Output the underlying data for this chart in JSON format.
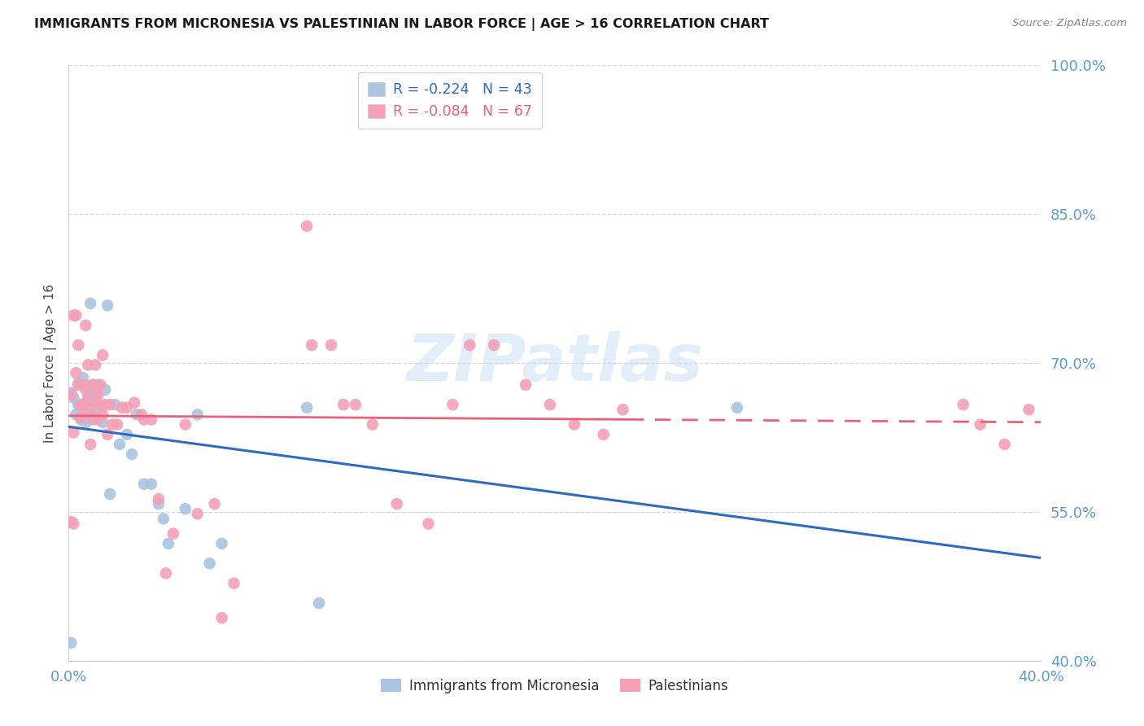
{
  "title": "IMMIGRANTS FROM MICRONESIA VS PALESTINIAN IN LABOR FORCE | AGE > 16 CORRELATION CHART",
  "source": "Source: ZipAtlas.com",
  "ylabel": "In Labor Force | Age > 16",
  "xlim": [
    0.0,
    0.4
  ],
  "ylim": [
    0.4,
    1.0
  ],
  "yticks": [
    0.4,
    0.55,
    0.7,
    0.85,
    1.0
  ],
  "ytick_labels": [
    "40.0%",
    "55.0%",
    "70.0%",
    "85.0%",
    "100.0%"
  ],
  "xticks": [
    0.0,
    0.1,
    0.2,
    0.3,
    0.4
  ],
  "xtick_labels": [
    "0.0%",
    "",
    "",
    "",
    "40.0%"
  ],
  "micronesia_color": "#aac4e2",
  "palestinian_color": "#f4a0b5",
  "trend_micronesia_color": "#2e6bbf",
  "trend_palestinian_color": "#e8607a",
  "R_micronesia": -0.224,
  "N_micronesia": 43,
  "R_palestinian": -0.084,
  "N_palestinian": 67,
  "watermark_text": "ZIPatlas",
  "background_color": "#ffffff",
  "grid_color": "#d8d8d8",
  "axis_color": "#5b9bd5",
  "title_color": "#1a1a1a",
  "source_color": "#888888",
  "ylabel_color": "#444444",
  "micronesia_x": [
    0.001,
    0.002,
    0.003,
    0.004,
    0.004,
    0.005,
    0.005,
    0.006,
    0.006,
    0.007,
    0.007,
    0.008,
    0.008,
    0.009,
    0.009,
    0.01,
    0.01,
    0.011,
    0.011,
    0.012,
    0.013,
    0.014,
    0.015,
    0.016,
    0.017,
    0.019,
    0.021,
    0.024,
    0.026,
    0.028,
    0.031,
    0.034,
    0.037,
    0.039,
    0.041,
    0.048,
    0.053,
    0.058,
    0.063,
    0.098,
    0.103,
    0.275,
    0.001
  ],
  "micronesia_y": [
    0.67,
    0.665,
    0.648,
    0.68,
    0.658,
    0.655,
    0.643,
    0.685,
    0.65,
    0.66,
    0.64,
    0.668,
    0.643,
    0.76,
    0.648,
    0.678,
    0.658,
    0.668,
    0.648,
    0.678,
    0.658,
    0.64,
    0.673,
    0.758,
    0.568,
    0.658,
    0.618,
    0.628,
    0.608,
    0.648,
    0.578,
    0.578,
    0.558,
    0.543,
    0.518,
    0.553,
    0.648,
    0.498,
    0.518,
    0.655,
    0.458,
    0.655,
    0.418
  ],
  "palestinian_x": [
    0.001,
    0.001,
    0.002,
    0.002,
    0.003,
    0.003,
    0.004,
    0.004,
    0.005,
    0.005,
    0.006,
    0.006,
    0.007,
    0.007,
    0.008,
    0.008,
    0.009,
    0.009,
    0.01,
    0.01,
    0.011,
    0.011,
    0.012,
    0.012,
    0.013,
    0.014,
    0.014,
    0.015,
    0.016,
    0.017,
    0.018,
    0.02,
    0.022,
    0.024,
    0.027,
    0.03,
    0.031,
    0.034,
    0.037,
    0.04,
    0.043,
    0.048,
    0.053,
    0.06,
    0.063,
    0.068,
    0.098,
    0.1,
    0.108,
    0.113,
    0.118,
    0.125,
    0.135,
    0.148,
    0.158,
    0.165,
    0.175,
    0.188,
    0.198,
    0.208,
    0.22,
    0.228,
    0.368,
    0.375,
    0.385,
    0.395,
    0.002
  ],
  "palestinian_y": [
    0.668,
    0.54,
    0.748,
    0.63,
    0.748,
    0.69,
    0.718,
    0.678,
    0.658,
    0.645,
    0.678,
    0.655,
    0.738,
    0.673,
    0.698,
    0.663,
    0.648,
    0.618,
    0.678,
    0.643,
    0.698,
    0.658,
    0.668,
    0.643,
    0.678,
    0.648,
    0.708,
    0.658,
    0.628,
    0.658,
    0.638,
    0.638,
    0.655,
    0.655,
    0.66,
    0.648,
    0.643,
    0.643,
    0.563,
    0.488,
    0.528,
    0.638,
    0.548,
    0.558,
    0.443,
    0.478,
    0.838,
    0.718,
    0.718,
    0.658,
    0.658,
    0.638,
    0.558,
    0.538,
    0.658,
    0.718,
    0.718,
    0.678,
    0.658,
    0.638,
    0.628,
    0.653,
    0.658,
    0.638,
    0.618,
    0.653,
    0.538
  ],
  "legend_R_label_1": "R = ",
  "legend_R_val_1": "-0.224",
  "legend_N_label_1": "  N = ",
  "legend_N_val_1": "43",
  "legend_R_label_2": "R = ",
  "legend_R_val_2": "-0.084",
  "legend_N_label_2": "  N = ",
  "legend_N_val_2": "67"
}
